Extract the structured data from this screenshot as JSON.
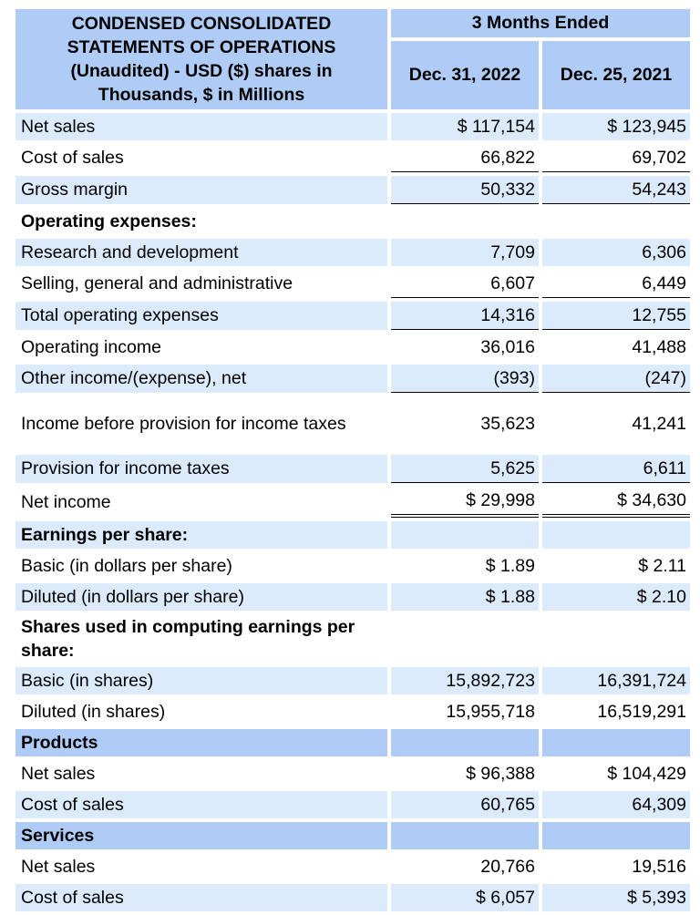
{
  "header": {
    "title": "CONDENSED CONSOLIDATED STATEMENTS OF OPERATIONS (Unaudited) - USD ($) shares in Thousands, $ in Millions",
    "period_group": "3 Months Ended",
    "columns": [
      "Dec. 31, 2022",
      "Dec. 25, 2021"
    ]
  },
  "rows": [
    {
      "label": "Net sales",
      "v1": "$ 117,154",
      "v2": "$ 123,945"
    },
    {
      "label": "Cost of sales",
      "v1": "66,822",
      "v2": "69,702"
    },
    {
      "label": "Gross margin",
      "v1": "50,332",
      "v2": "54,243"
    },
    {
      "label": "Operating expenses:",
      "v1": "",
      "v2": ""
    },
    {
      "label": "Research and development",
      "v1": "7,709",
      "v2": "6,306"
    },
    {
      "label": "Selling, general and administrative",
      "v1": "6,607",
      "v2": "6,449"
    },
    {
      "label": "Total operating expenses",
      "v1": "14,316",
      "v2": "12,755"
    },
    {
      "label": "Operating income",
      "v1": "36,016",
      "v2": "41,488"
    },
    {
      "label": "Other income/(expense), net",
      "v1": "(393)",
      "v2": "(247)"
    },
    {
      "label": "Income before provision for income taxes",
      "v1": "35,623",
      "v2": "41,241"
    },
    {
      "label": "Provision for income taxes",
      "v1": "5,625",
      "v2": "6,611"
    },
    {
      "label": "Net income",
      "v1": "$ 29,998",
      "v2": "$ 34,630"
    },
    {
      "label": "Earnings per share:",
      "v1": "",
      "v2": ""
    },
    {
      "label": "Basic (in dollars per share)",
      "v1": "$ 1.89",
      "v2": "$ 2.11"
    },
    {
      "label": "Diluted (in dollars per share)",
      "v1": "$ 1.88",
      "v2": "$ 2.10"
    },
    {
      "label": "Shares used in computing earnings per share:",
      "v1": "",
      "v2": ""
    },
    {
      "label": "Basic (in shares)",
      "v1": "15,892,723",
      "v2": "16,391,724"
    },
    {
      "label": "Diluted (in shares)",
      "v1": "15,955,718",
      "v2": "16,519,291"
    },
    {
      "label": "Products",
      "v1": "",
      "v2": ""
    },
    {
      "label": "Net sales",
      "v1": "$ 96,388",
      "v2": "$ 104,429"
    },
    {
      "label": "Cost of sales",
      "v1": "60,765",
      "v2": "64,309"
    },
    {
      "label": "Services",
      "v1": "",
      "v2": ""
    },
    {
      "label": "Net sales",
      "v1": "20,766",
      "v2": "19,516"
    },
    {
      "label": "Cost of sales",
      "v1": "$ 6,057",
      "v2": "$ 5,393"
    }
  ]
}
